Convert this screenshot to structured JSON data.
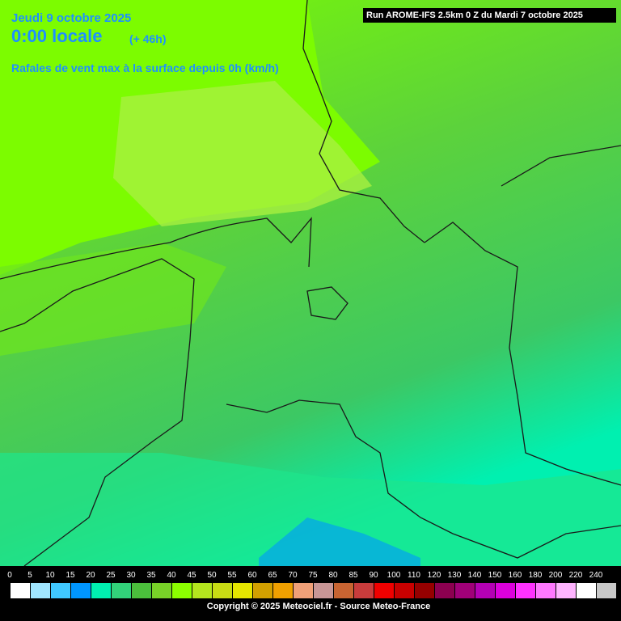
{
  "header": {
    "date": "Jeudi 9 octobre 2025",
    "time": "0:00 locale",
    "lead": "(+ 46h)",
    "subtitle": "Rafales de vent max à la surface depuis 0h (km/h)",
    "run": "Run AROME-IFS 2.5km 0 Z du Mardi 7 octobre 2025"
  },
  "legend": {
    "stops": [
      {
        "label": "0",
        "color": "#ffffff"
      },
      {
        "label": "5",
        "color": "#a0e6ff"
      },
      {
        "label": "10",
        "color": "#40c8ff"
      },
      {
        "label": "15",
        "color": "#0096ff"
      },
      {
        "label": "20",
        "color": "#00f0b0"
      },
      {
        "label": "25",
        "color": "#32d27a"
      },
      {
        "label": "30",
        "color": "#4bbf3c"
      },
      {
        "label": "35",
        "color": "#78d228"
      },
      {
        "label": "40",
        "color": "#8cff00"
      },
      {
        "label": "45",
        "color": "#b4e61e"
      },
      {
        "label": "50",
        "color": "#c8dc14"
      },
      {
        "label": "55",
        "color": "#e6e600"
      },
      {
        "label": "60",
        "color": "#d2a000"
      },
      {
        "label": "65",
        "color": "#f0a000"
      },
      {
        "label": "70",
        "color": "#f0a078"
      },
      {
        "label": "75",
        "color": "#c89696"
      },
      {
        "label": "80",
        "color": "#c86432"
      },
      {
        "label": "85",
        "color": "#c83c3c"
      },
      {
        "label": "90",
        "color": "#f00000"
      },
      {
        "label": "100",
        "color": "#c80000"
      },
      {
        "label": "110",
        "color": "#960000"
      },
      {
        "label": "120",
        "color": "#8c0050"
      },
      {
        "label": "130",
        "color": "#a00078"
      },
      {
        "label": "140",
        "color": "#b400b4"
      },
      {
        "label": "150",
        "color": "#dc00dc"
      },
      {
        "label": "160",
        "color": "#ff32ff"
      },
      {
        "label": "180",
        "color": "#ff78ff"
      },
      {
        "label": "200",
        "color": "#ffb4ff"
      },
      {
        "label": "220",
        "color": "#ffffff"
      },
      {
        "label": "240",
        "color": "#c8c8c8"
      }
    ]
  },
  "footer": {
    "copyright": "Copyright © 2025 Meteociel.fr - Source Meteo-France"
  }
}
